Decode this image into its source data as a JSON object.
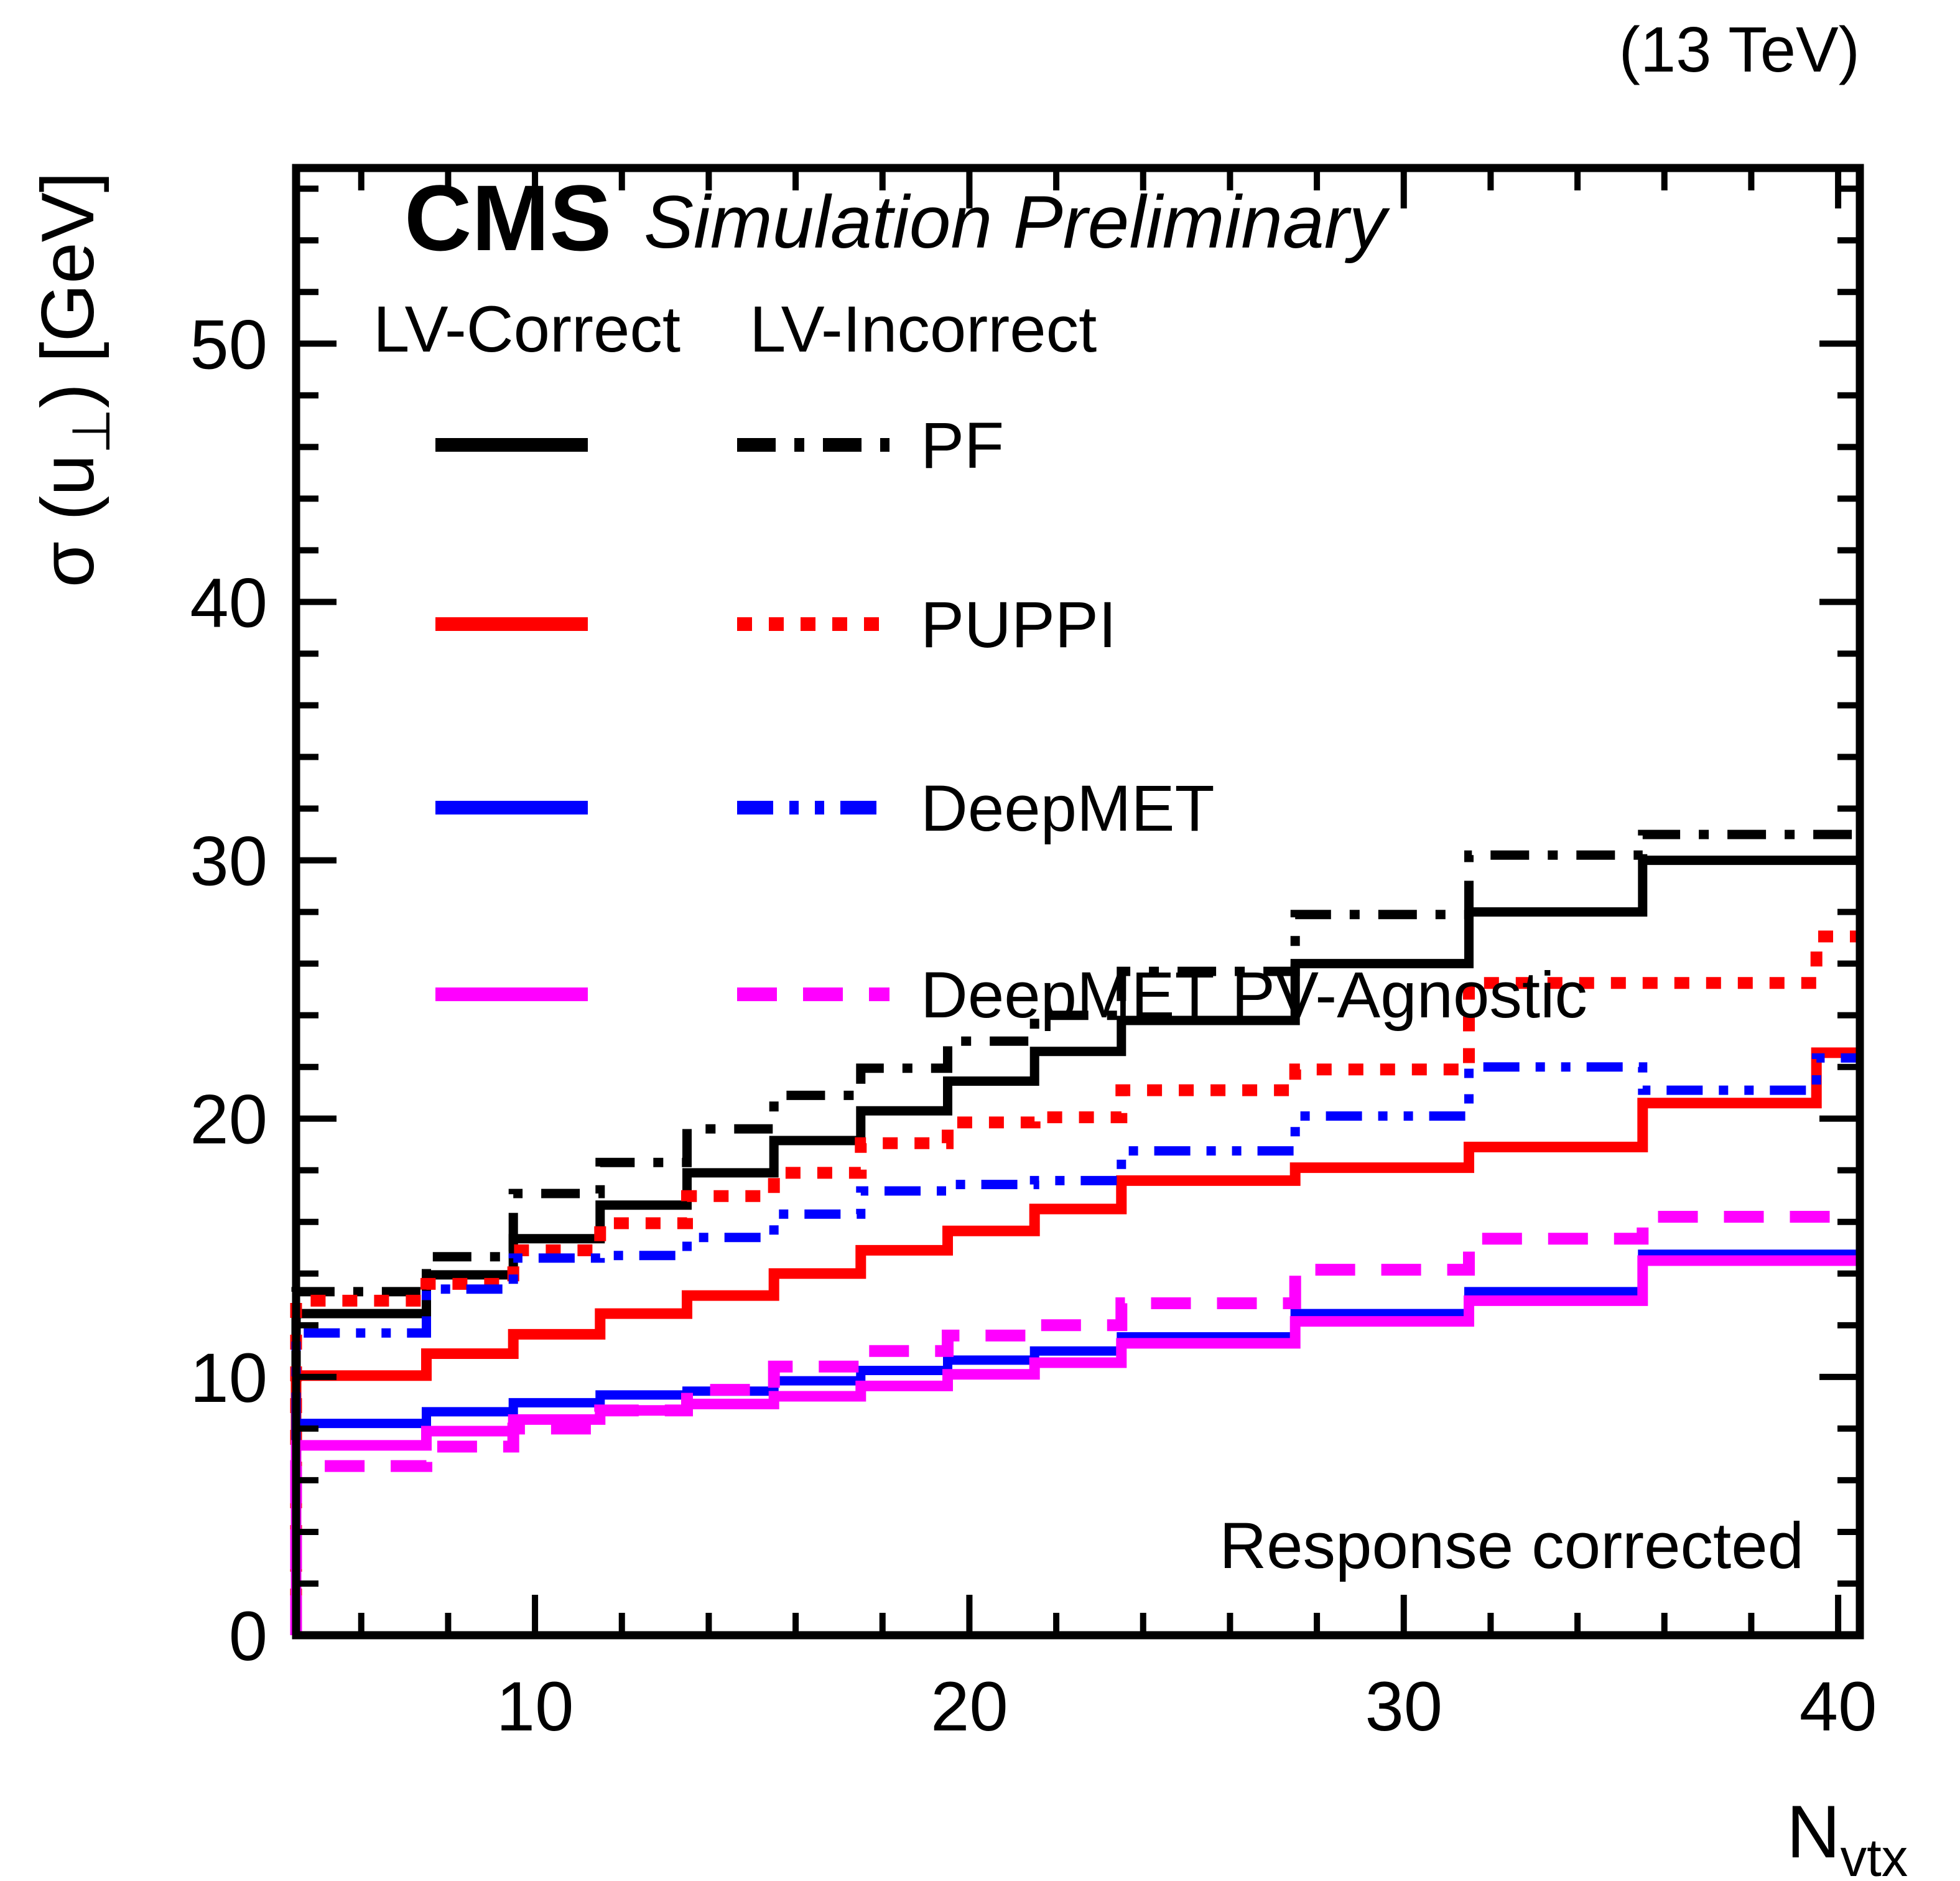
{
  "header": {
    "lumi_label": "(13 TeV)"
  },
  "plot": {
    "experiment": "CMS",
    "sim_label": "Simulation Preliminary",
    "annotation": "Response corrected",
    "legend": {
      "col1_header": "LV-Correct",
      "col2_header": "LV-Incorrect",
      "entries": [
        {
          "label": "PF",
          "color": "#000000",
          "correct_line": "solid",
          "incorrect_line": "dashdot"
        },
        {
          "label": "PUPPI",
          "color": "#ff0000",
          "correct_line": "solid",
          "incorrect_line": "dotted"
        },
        {
          "label": "DeepMET",
          "color": "#0000ff",
          "correct_line": "solid",
          "incorrect_line": "dashdotdot"
        },
        {
          "label": "DeepMET PV-Agnostic",
          "color": "#ff00ff",
          "correct_line": "solid",
          "incorrect_line": "dashed"
        }
      ]
    }
  },
  "chart_data": {
    "type": "line",
    "subtype": "step-histogram",
    "title": "",
    "xlabel": {
      "main": "N",
      "sub": "vtx"
    },
    "ylabel": {
      "pre": "σ (u",
      "sub": "⊥",
      "post": ") [GeV]"
    },
    "xlim": [
      4.5,
      40.5
    ],
    "ylim": [
      0,
      56.8
    ],
    "x_major_ticks": [
      10,
      20,
      30,
      40
    ],
    "x_minor_step": 2,
    "y_major_ticks": [
      0,
      10,
      20,
      30,
      40,
      50
    ],
    "y_minor_step": 2,
    "grid": "off",
    "legend_position": "top-left-inside",
    "bin_edges": [
      4.5,
      7.5,
      9.5,
      11.5,
      13.5,
      15.5,
      17.5,
      19.5,
      21.5,
      23.5,
      27.5,
      31.5,
      35.5,
      39.5,
      40.5
    ],
    "series": [
      {
        "name": "PF LV-Correct",
        "color": "#000000",
        "line": "solid",
        "width": 15,
        "values": [
          12.45,
          13.95,
          15.35,
          16.65,
          17.9,
          19.15,
          20.3,
          21.45,
          22.6,
          23.8,
          26.0,
          28.0,
          30.0,
          30.0
        ]
      },
      {
        "name": "PF LV-Incorrect",
        "color": "#000000",
        "line": "dashdot",
        "width": 15,
        "values": [
          13.3,
          14.65,
          17.1,
          18.3,
          19.6,
          20.9,
          21.95,
          23.0,
          24.0,
          25.7,
          27.9,
          30.2,
          31.0,
          31.0
        ]
      },
      {
        "name": "PUPPI LV-Correct",
        "color": "#ff0000",
        "line": "solid",
        "width": 17,
        "values": [
          10.05,
          10.9,
          11.65,
          12.45,
          13.15,
          14.0,
          14.9,
          15.65,
          16.5,
          17.6,
          18.1,
          18.9,
          20.6,
          22.55
        ]
      },
      {
        "name": "PUPPI LV-Incorrect",
        "color": "#ff0000",
        "line": "dotted",
        "width": 19,
        "values": [
          12.95,
          13.6,
          14.9,
          15.95,
          17.0,
          17.9,
          19.05,
          19.85,
          20.05,
          21.1,
          21.9,
          25.25,
          25.25,
          27.05
        ]
      },
      {
        "name": "DeepMET LV-Correct",
        "color": "#0000ff",
        "line": "solid",
        "width": 15,
        "values": [
          8.2,
          8.65,
          9.0,
          9.3,
          9.45,
          9.85,
          10.25,
          10.65,
          11.0,
          11.55,
          12.45,
          13.3,
          14.75,
          14.75
        ]
      },
      {
        "name": "DeepMET LV-Incorrect",
        "color": "#0000ff",
        "line": "dashdotdot",
        "width": 15,
        "values": [
          11.7,
          13.4,
          14.6,
          14.7,
          15.4,
          16.3,
          17.2,
          17.45,
          17.6,
          18.75,
          20.1,
          22.0,
          21.1,
          22.35
        ]
      },
      {
        "name": "DeepMET PV-Agnostic LV-Correct",
        "color": "#ff00ff",
        "line": "solid",
        "width": 17,
        "values": [
          7.35,
          7.9,
          8.35,
          8.7,
          8.95,
          9.25,
          9.65,
          10.1,
          10.55,
          11.3,
          12.15,
          12.95,
          14.5,
          14.5
        ]
      },
      {
        "name": "DeepMET PV-Agnostic LV-Incorrect",
        "color": "#ff00ff",
        "line": "dashed",
        "width": 19,
        "values": [
          6.55,
          7.3,
          8.0,
          8.7,
          9.5,
          10.4,
          11.0,
          11.6,
          12.0,
          12.85,
          14.15,
          15.35,
          16.2,
          16.2
        ]
      }
    ]
  },
  "colors": {
    "foreground": "#000000",
    "background": "#ffffff"
  }
}
